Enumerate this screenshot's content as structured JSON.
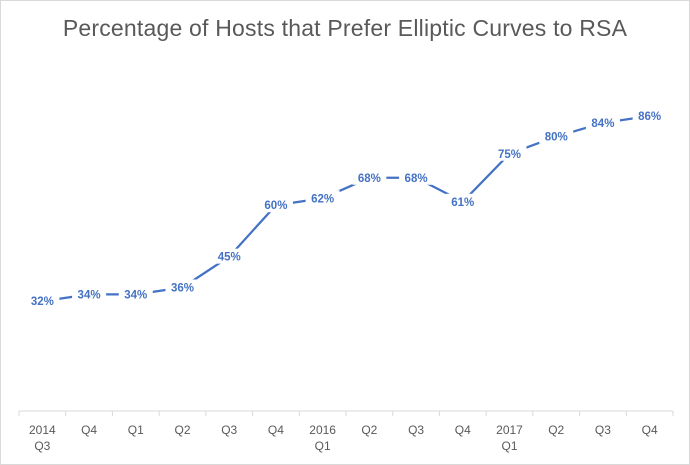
{
  "chart_data": {
    "type": "line",
    "title": "Percentage of Hosts that Prefer Elliptic Curves to RSA",
    "xlabel": "",
    "ylabel": "",
    "categories": [
      [
        "2014",
        "Q3"
      ],
      [
        "Q4"
      ],
      [
        "Q1"
      ],
      [
        "Q2"
      ],
      [
        "Q3"
      ],
      [
        "Q4"
      ],
      [
        "2016",
        "Q1"
      ],
      [
        "Q2"
      ],
      [
        "Q3"
      ],
      [
        "Q4"
      ],
      [
        "2017",
        "Q1"
      ],
      [
        "Q2"
      ],
      [
        "Q3"
      ],
      [
        "Q4"
      ]
    ],
    "series": [
      {
        "values": [
          32,
          34,
          34,
          36,
          45,
          60,
          62,
          68,
          68,
          61,
          75,
          80,
          84,
          86
        ],
        "data_labels": [
          "32%",
          "34%",
          "34%",
          "36%",
          "45%",
          "60%",
          "62%",
          "68%",
          "68%",
          "61%",
          "75%",
          "80%",
          "84%",
          "86%"
        ],
        "color": "#4472c4"
      }
    ],
    "ylim": [
      0,
      100
    ],
    "grid": false,
    "legend": "none",
    "line_color": "#4472c4",
    "axis_color": "#d9d9d9",
    "text_color": "#595959"
  }
}
